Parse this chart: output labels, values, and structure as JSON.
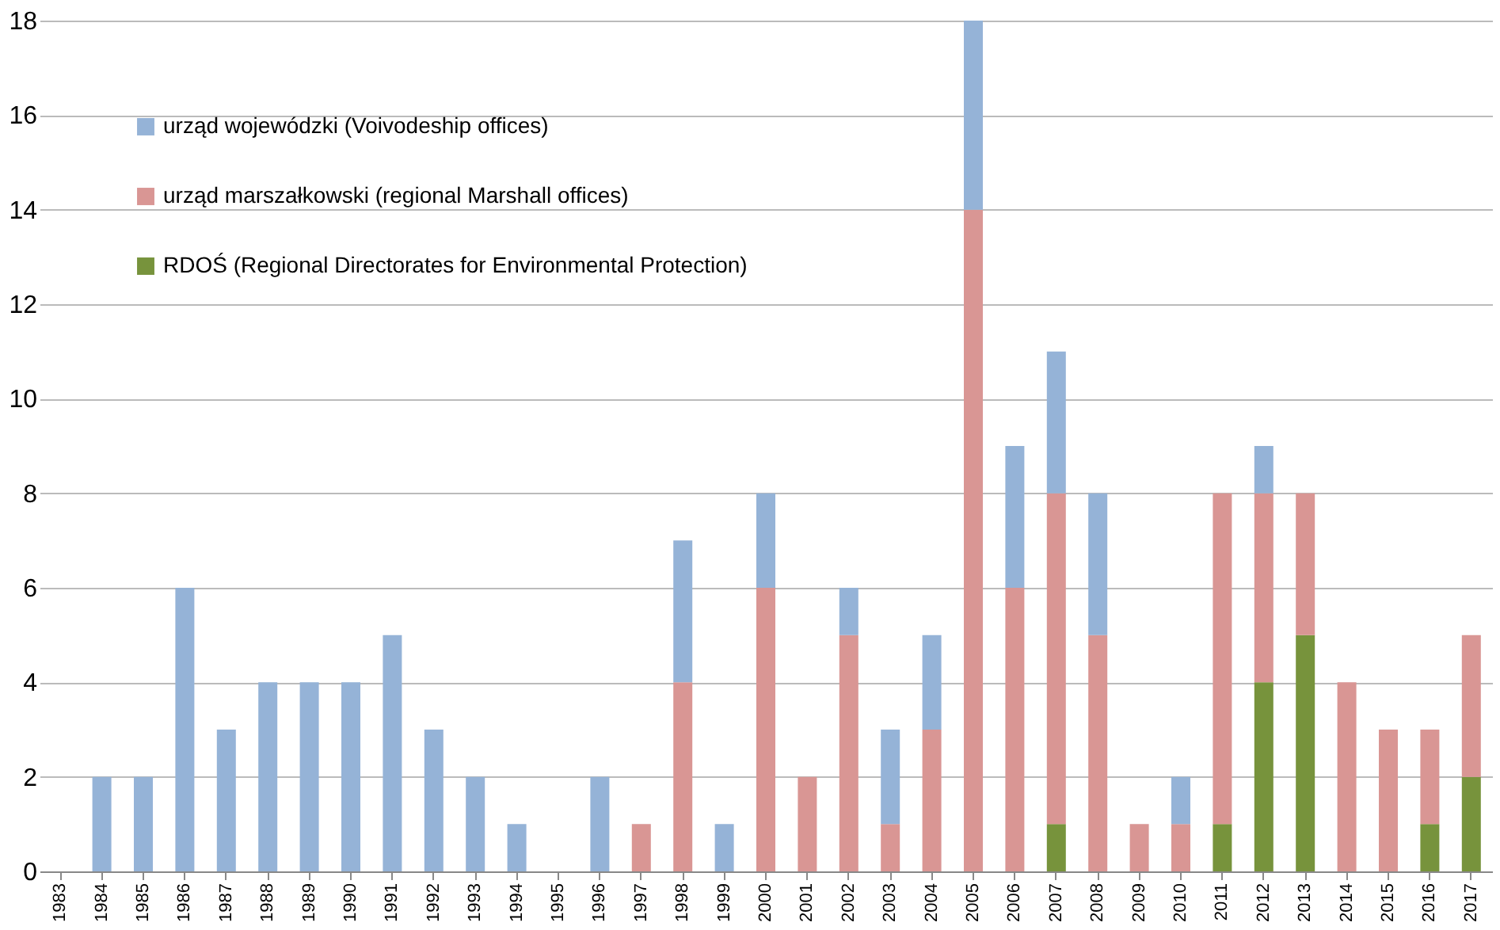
{
  "chart_data": {
    "type": "bar",
    "stacked": true,
    "categories": [
      "1983",
      "1984",
      "1985",
      "1986",
      "1987",
      "1988",
      "1989",
      "1990",
      "1991",
      "1992",
      "1993",
      "1994",
      "1995",
      "1996",
      "1997",
      "1998",
      "1999",
      "2000",
      "2001",
      "2002",
      "2003",
      "2004",
      "2005",
      "2006",
      "2007",
      "2008",
      "2009",
      "2010",
      "2011",
      "2012",
      "2013",
      "2014",
      "2015",
      "2016",
      "2017"
    ],
    "series": [
      {
        "name": "RDOŚ (Regional Directorates for Environmental Protection)",
        "color": "#77933c",
        "values": [
          0,
          0,
          0,
          0,
          0,
          0,
          0,
          0,
          0,
          0,
          0,
          0,
          0,
          0,
          0,
          0,
          0,
          0,
          0,
          0,
          0,
          0,
          0,
          0,
          1,
          0,
          0,
          0,
          1,
          4,
          5,
          0,
          0,
          1,
          2
        ]
      },
      {
        "name": "urząd marszałkowski (regional Marshall offices)",
        "color": "#d99694",
        "values": [
          0,
          0,
          0,
          0,
          0,
          0,
          0,
          0,
          0,
          0,
          0,
          0,
          0,
          0,
          1,
          4,
          0,
          6,
          2,
          5,
          1,
          3,
          14,
          6,
          7,
          5,
          1,
          1,
          7,
          4,
          3,
          4,
          3,
          2,
          3
        ]
      },
      {
        "name": "urząd wojewódzki (Voivodeship offices)",
        "color": "#95b3d7",
        "values": [
          0,
          2,
          2,
          6,
          3,
          4,
          4,
          4,
          5,
          3,
          2,
          1,
          0,
          2,
          0,
          3,
          1,
          2,
          0,
          1,
          2,
          2,
          4,
          3,
          3,
          3,
          0,
          1,
          0,
          1,
          0,
          0,
          0,
          0,
          0
        ]
      }
    ],
    "ylim": [
      0,
      18
    ],
    "yticks": [
      0,
      2,
      4,
      6,
      8,
      10,
      12,
      14,
      16,
      18
    ],
    "grid": "y",
    "legend": "top left"
  }
}
